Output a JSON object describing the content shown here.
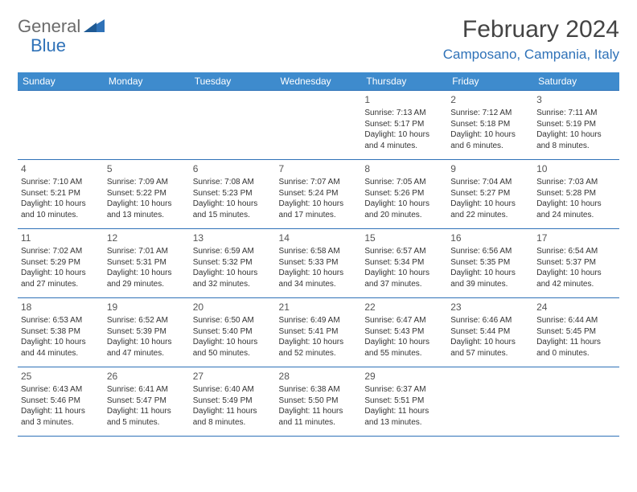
{
  "logo": {
    "part1": "General",
    "part2": "Blue"
  },
  "title": "February 2024",
  "location": "Camposano, Campania, Italy",
  "colors": {
    "header_bg": "#3e8bcd",
    "border": "#2f72b8",
    "accent": "#2f72b8",
    "text": "#333333",
    "logo_gray": "#6b6b6b"
  },
  "typography": {
    "title_fontsize": 30,
    "location_fontsize": 17,
    "day_header_fontsize": 12,
    "cell_fontsize": 10,
    "daynum_fontsize": 12
  },
  "day_headers": [
    "Sunday",
    "Monday",
    "Tuesday",
    "Wednesday",
    "Thursday",
    "Friday",
    "Saturday"
  ],
  "weeks": [
    [
      null,
      null,
      null,
      null,
      {
        "n": "1",
        "sr": "Sunrise: 7:13 AM",
        "ss": "Sunset: 5:17 PM",
        "d1": "Daylight: 10 hours",
        "d2": "and 4 minutes."
      },
      {
        "n": "2",
        "sr": "Sunrise: 7:12 AM",
        "ss": "Sunset: 5:18 PM",
        "d1": "Daylight: 10 hours",
        "d2": "and 6 minutes."
      },
      {
        "n": "3",
        "sr": "Sunrise: 7:11 AM",
        "ss": "Sunset: 5:19 PM",
        "d1": "Daylight: 10 hours",
        "d2": "and 8 minutes."
      }
    ],
    [
      {
        "n": "4",
        "sr": "Sunrise: 7:10 AM",
        "ss": "Sunset: 5:21 PM",
        "d1": "Daylight: 10 hours",
        "d2": "and 10 minutes."
      },
      {
        "n": "5",
        "sr": "Sunrise: 7:09 AM",
        "ss": "Sunset: 5:22 PM",
        "d1": "Daylight: 10 hours",
        "d2": "and 13 minutes."
      },
      {
        "n": "6",
        "sr": "Sunrise: 7:08 AM",
        "ss": "Sunset: 5:23 PM",
        "d1": "Daylight: 10 hours",
        "d2": "and 15 minutes."
      },
      {
        "n": "7",
        "sr": "Sunrise: 7:07 AM",
        "ss": "Sunset: 5:24 PM",
        "d1": "Daylight: 10 hours",
        "d2": "and 17 minutes."
      },
      {
        "n": "8",
        "sr": "Sunrise: 7:05 AM",
        "ss": "Sunset: 5:26 PM",
        "d1": "Daylight: 10 hours",
        "d2": "and 20 minutes."
      },
      {
        "n": "9",
        "sr": "Sunrise: 7:04 AM",
        "ss": "Sunset: 5:27 PM",
        "d1": "Daylight: 10 hours",
        "d2": "and 22 minutes."
      },
      {
        "n": "10",
        "sr": "Sunrise: 7:03 AM",
        "ss": "Sunset: 5:28 PM",
        "d1": "Daylight: 10 hours",
        "d2": "and 24 minutes."
      }
    ],
    [
      {
        "n": "11",
        "sr": "Sunrise: 7:02 AM",
        "ss": "Sunset: 5:29 PM",
        "d1": "Daylight: 10 hours",
        "d2": "and 27 minutes."
      },
      {
        "n": "12",
        "sr": "Sunrise: 7:01 AM",
        "ss": "Sunset: 5:31 PM",
        "d1": "Daylight: 10 hours",
        "d2": "and 29 minutes."
      },
      {
        "n": "13",
        "sr": "Sunrise: 6:59 AM",
        "ss": "Sunset: 5:32 PM",
        "d1": "Daylight: 10 hours",
        "d2": "and 32 minutes."
      },
      {
        "n": "14",
        "sr": "Sunrise: 6:58 AM",
        "ss": "Sunset: 5:33 PM",
        "d1": "Daylight: 10 hours",
        "d2": "and 34 minutes."
      },
      {
        "n": "15",
        "sr": "Sunrise: 6:57 AM",
        "ss": "Sunset: 5:34 PM",
        "d1": "Daylight: 10 hours",
        "d2": "and 37 minutes."
      },
      {
        "n": "16",
        "sr": "Sunrise: 6:56 AM",
        "ss": "Sunset: 5:35 PM",
        "d1": "Daylight: 10 hours",
        "d2": "and 39 minutes."
      },
      {
        "n": "17",
        "sr": "Sunrise: 6:54 AM",
        "ss": "Sunset: 5:37 PM",
        "d1": "Daylight: 10 hours",
        "d2": "and 42 minutes."
      }
    ],
    [
      {
        "n": "18",
        "sr": "Sunrise: 6:53 AM",
        "ss": "Sunset: 5:38 PM",
        "d1": "Daylight: 10 hours",
        "d2": "and 44 minutes."
      },
      {
        "n": "19",
        "sr": "Sunrise: 6:52 AM",
        "ss": "Sunset: 5:39 PM",
        "d1": "Daylight: 10 hours",
        "d2": "and 47 minutes."
      },
      {
        "n": "20",
        "sr": "Sunrise: 6:50 AM",
        "ss": "Sunset: 5:40 PM",
        "d1": "Daylight: 10 hours",
        "d2": "and 50 minutes."
      },
      {
        "n": "21",
        "sr": "Sunrise: 6:49 AM",
        "ss": "Sunset: 5:41 PM",
        "d1": "Daylight: 10 hours",
        "d2": "and 52 minutes."
      },
      {
        "n": "22",
        "sr": "Sunrise: 6:47 AM",
        "ss": "Sunset: 5:43 PM",
        "d1": "Daylight: 10 hours",
        "d2": "and 55 minutes."
      },
      {
        "n": "23",
        "sr": "Sunrise: 6:46 AM",
        "ss": "Sunset: 5:44 PM",
        "d1": "Daylight: 10 hours",
        "d2": "and 57 minutes."
      },
      {
        "n": "24",
        "sr": "Sunrise: 6:44 AM",
        "ss": "Sunset: 5:45 PM",
        "d1": "Daylight: 11 hours",
        "d2": "and 0 minutes."
      }
    ],
    [
      {
        "n": "25",
        "sr": "Sunrise: 6:43 AM",
        "ss": "Sunset: 5:46 PM",
        "d1": "Daylight: 11 hours",
        "d2": "and 3 minutes."
      },
      {
        "n": "26",
        "sr": "Sunrise: 6:41 AM",
        "ss": "Sunset: 5:47 PM",
        "d1": "Daylight: 11 hours",
        "d2": "and 5 minutes."
      },
      {
        "n": "27",
        "sr": "Sunrise: 6:40 AM",
        "ss": "Sunset: 5:49 PM",
        "d1": "Daylight: 11 hours",
        "d2": "and 8 minutes."
      },
      {
        "n": "28",
        "sr": "Sunrise: 6:38 AM",
        "ss": "Sunset: 5:50 PM",
        "d1": "Daylight: 11 hours",
        "d2": "and 11 minutes."
      },
      {
        "n": "29",
        "sr": "Sunrise: 6:37 AM",
        "ss": "Sunset: 5:51 PM",
        "d1": "Daylight: 11 hours",
        "d2": "and 13 minutes."
      },
      null,
      null
    ]
  ]
}
